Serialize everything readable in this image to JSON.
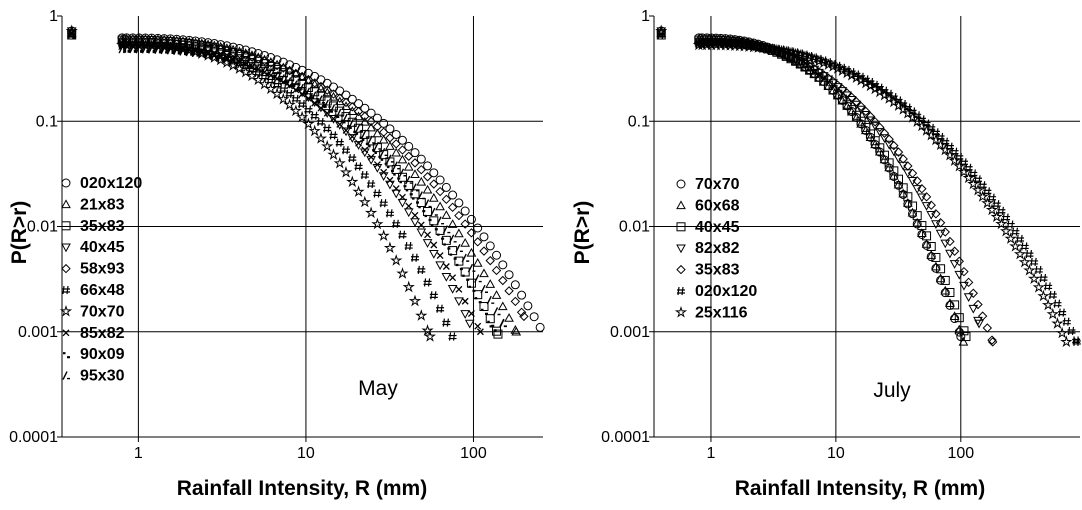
{
  "chart_data": [
    {
      "type": "scatter",
      "panel_label": "May",
      "xlabel": "Rainfall Intensity, R (mm)",
      "ylabel": "P(R>r)",
      "xscale": "log",
      "yscale": "log",
      "xlim": [
        0.35,
        260
      ],
      "ylim": [
        0.0001,
        1
      ],
      "xticks": [
        "1",
        "10",
        "100"
      ],
      "yticks": [
        "1",
        "0.1",
        "0.01",
        "0.001",
        "0.0001"
      ],
      "grid": true,
      "legend_position": "left",
      "series": [
        {
          "name": "020x120",
          "marker": "circle",
          "xmax": 250,
          "ymin": 0.0011
        },
        {
          "name": "21x83",
          "marker": "triangle-up",
          "xmax": 180,
          "ymin": 0.001
        },
        {
          "name": "35x83",
          "marker": "square",
          "xmax": 140,
          "ymin": 0.00095
        },
        {
          "name": "40x45",
          "marker": "triangle-down",
          "xmax": 95,
          "ymin": 0.0012
        },
        {
          "name": "58x93",
          "marker": "diamond",
          "xmax": 200,
          "ymin": 0.0014
        },
        {
          "name": "66x48",
          "marker": "hash",
          "xmax": 75,
          "ymin": 0.0009
        },
        {
          "name": "70x70",
          "marker": "star",
          "xmax": 55,
          "ymin": 0.0009
        },
        {
          "name": "85x82",
          "marker": "x",
          "xmax": 110,
          "ymin": 0.001
        },
        {
          "name": "90x09",
          "marker": "dot-dash",
          "xmax": 130,
          "ymin": 0.0011
        },
        {
          "name": "95x30",
          "marker": "slash",
          "xmax": 150,
          "ymin": 0.0012
        }
      ]
    },
    {
      "type": "scatter",
      "panel_label": "July",
      "xlabel": "Rainfall Intensity, R (mm)",
      "ylabel": "P(R>r)",
      "xscale": "log",
      "yscale": "log",
      "xlim": [
        0.35,
        900
      ],
      "ylim": [
        0.0001,
        1
      ],
      "xticks": [
        "1",
        "10",
        "100"
      ],
      "yticks": [
        "1",
        "0.1",
        "0.01",
        "0.001",
        "0.0001"
      ],
      "grid": true,
      "legend_position": "left",
      "series": [
        {
          "name": "70x70",
          "marker": "circle",
          "xmax": 100,
          "ymin": 0.0009
        },
        {
          "name": "60x68",
          "marker": "triangle-up",
          "xmax": 105,
          "ymin": 0.0008
        },
        {
          "name": "40x45",
          "marker": "square",
          "xmax": 110,
          "ymin": 0.0009
        },
        {
          "name": "82x82",
          "marker": "triangle-down",
          "xmax": 140,
          "ymin": 0.0012
        },
        {
          "name": "35x83",
          "marker": "diamond",
          "xmax": 180,
          "ymin": 0.0008
        },
        {
          "name": "020x120",
          "marker": "hash",
          "xmax": 850,
          "ymin": 0.0008
        },
        {
          "name": "25x116",
          "marker": "star",
          "xmax": 700,
          "ymin": 0.0008
        }
      ]
    }
  ]
}
